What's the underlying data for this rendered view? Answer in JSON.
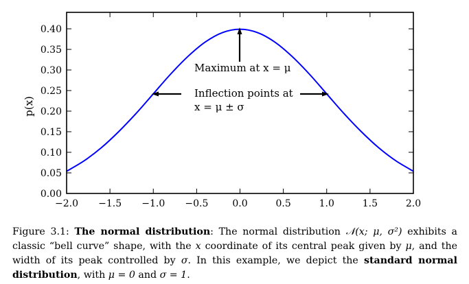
{
  "chart_data": {
    "type": "line",
    "xlabel": "",
    "ylabel": "p(x)",
    "xlim": [
      -2.0,
      2.0
    ],
    "ylim": [
      0.0,
      0.44
    ],
    "grid": false,
    "x_ticks": [
      "−2.0",
      "−1.5",
      "−1.0",
      "−0.5",
      "0.0",
      "0.5",
      "1.0",
      "1.5",
      "2.0"
    ],
    "x_tick_values": [
      -2.0,
      -1.5,
      -1.0,
      -0.5,
      0.0,
      0.5,
      1.0,
      1.5,
      2.0
    ],
    "y_ticks": [
      "0.00",
      "0.05",
      "0.10",
      "0.15",
      "0.20",
      "0.25",
      "0.30",
      "0.35",
      "0.40"
    ],
    "y_tick_values": [
      0.0,
      0.05,
      0.1,
      0.15,
      0.2,
      0.25,
      0.3,
      0.35,
      0.4
    ],
    "series": [
      {
        "color": "#0000ff",
        "x": [
          -2.0,
          -1.8,
          -1.6,
          -1.4,
          -1.2,
          -1.0,
          -0.8,
          -0.6,
          -0.4,
          -0.2,
          0.0,
          0.2,
          0.4,
          0.6,
          0.8,
          1.0,
          1.2,
          1.4,
          1.6,
          1.8,
          2.0
        ],
        "y": [
          0.054,
          0.079,
          0.111,
          0.15,
          0.194,
          0.242,
          0.29,
          0.333,
          0.368,
          0.391,
          0.399,
          0.391,
          0.368,
          0.333,
          0.29,
          0.242,
          0.194,
          0.15,
          0.111,
          0.079,
          0.054
        ]
      }
    ],
    "annotations": [
      {
        "line1": "Maximum at x = μ",
        "line2": ""
      },
      {
        "line1": "Inflection points at",
        "line2": "x = μ ± σ"
      }
    ]
  },
  "caption": {
    "figure_label": "Figure 3.1:",
    "bold_title": "The normal distribution",
    "text1": ": The normal distribution ",
    "notation": "𝒩(x; μ, σ²)",
    "text2": " exhibits a classic “bell curve” shape, with the ",
    "var_x": "x",
    "text3": " coordinate of its central peak given by ",
    "var_mu": "μ",
    "text4": ", and the width of its peak controlled by ",
    "var_sigma": "σ",
    "text5": ". In this example, we depict the ",
    "bold_standard": "standard normal distribution",
    "text6": ", with ",
    "mu_eq": "μ = 0",
    "text7": " and ",
    "sigma_eq": "σ = 1",
    "text8": "."
  }
}
